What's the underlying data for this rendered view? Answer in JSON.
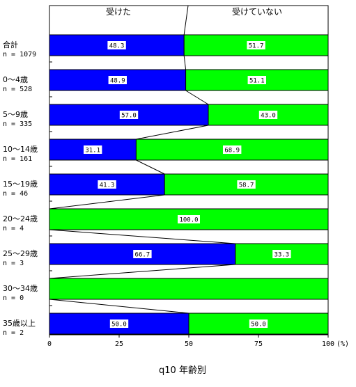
{
  "chart_data": {
    "type": "bar",
    "stacked": true,
    "orientation": "horizontal",
    "title": "q10 年齢別",
    "categories": [
      {
        "label": "合計",
        "n": "n = 1079"
      },
      {
        "label": "0～4歳",
        "n": "n = 528"
      },
      {
        "label": "5～9歳",
        "n": "n = 335"
      },
      {
        "label": "10～14歳",
        "n": "n = 161"
      },
      {
        "label": "15～19歳",
        "n": "n = 46"
      },
      {
        "label": "20～24歳",
        "n": "n = 4"
      },
      {
        "label": "25～29歳",
        "n": "n = 3"
      },
      {
        "label": "30～34歳",
        "n": "n = 0"
      },
      {
        "label": "35歳以上",
        "n": "n = 2"
      }
    ],
    "series": [
      {
        "name": "受けた",
        "color": "#0000ff",
        "values": [
          48.3,
          48.9,
          57.0,
          31.1,
          41.3,
          0,
          66.7,
          0,
          50.0
        ],
        "labels": [
          "48.3",
          "48.9",
          "57.0",
          "31.1",
          "41.3",
          "",
          "66.7",
          "",
          "50.0"
        ]
      },
      {
        "name": "受けていない",
        "color": "#00ff00",
        "values": [
          51.7,
          51.1,
          43.0,
          68.9,
          58.7,
          100.0,
          33.3,
          100.0,
          50.0
        ],
        "labels": [
          "51.7",
          "51.1",
          "43.0",
          "68.9",
          "58.7",
          "100.0",
          "33.3",
          "",
          "50.0"
        ]
      }
    ],
    "xlim": [
      0,
      100
    ],
    "xticks": [
      "0",
      "25",
      "50",
      "75",
      "100"
    ],
    "x_unit": "(%)",
    "grid": true,
    "legend": "top"
  }
}
